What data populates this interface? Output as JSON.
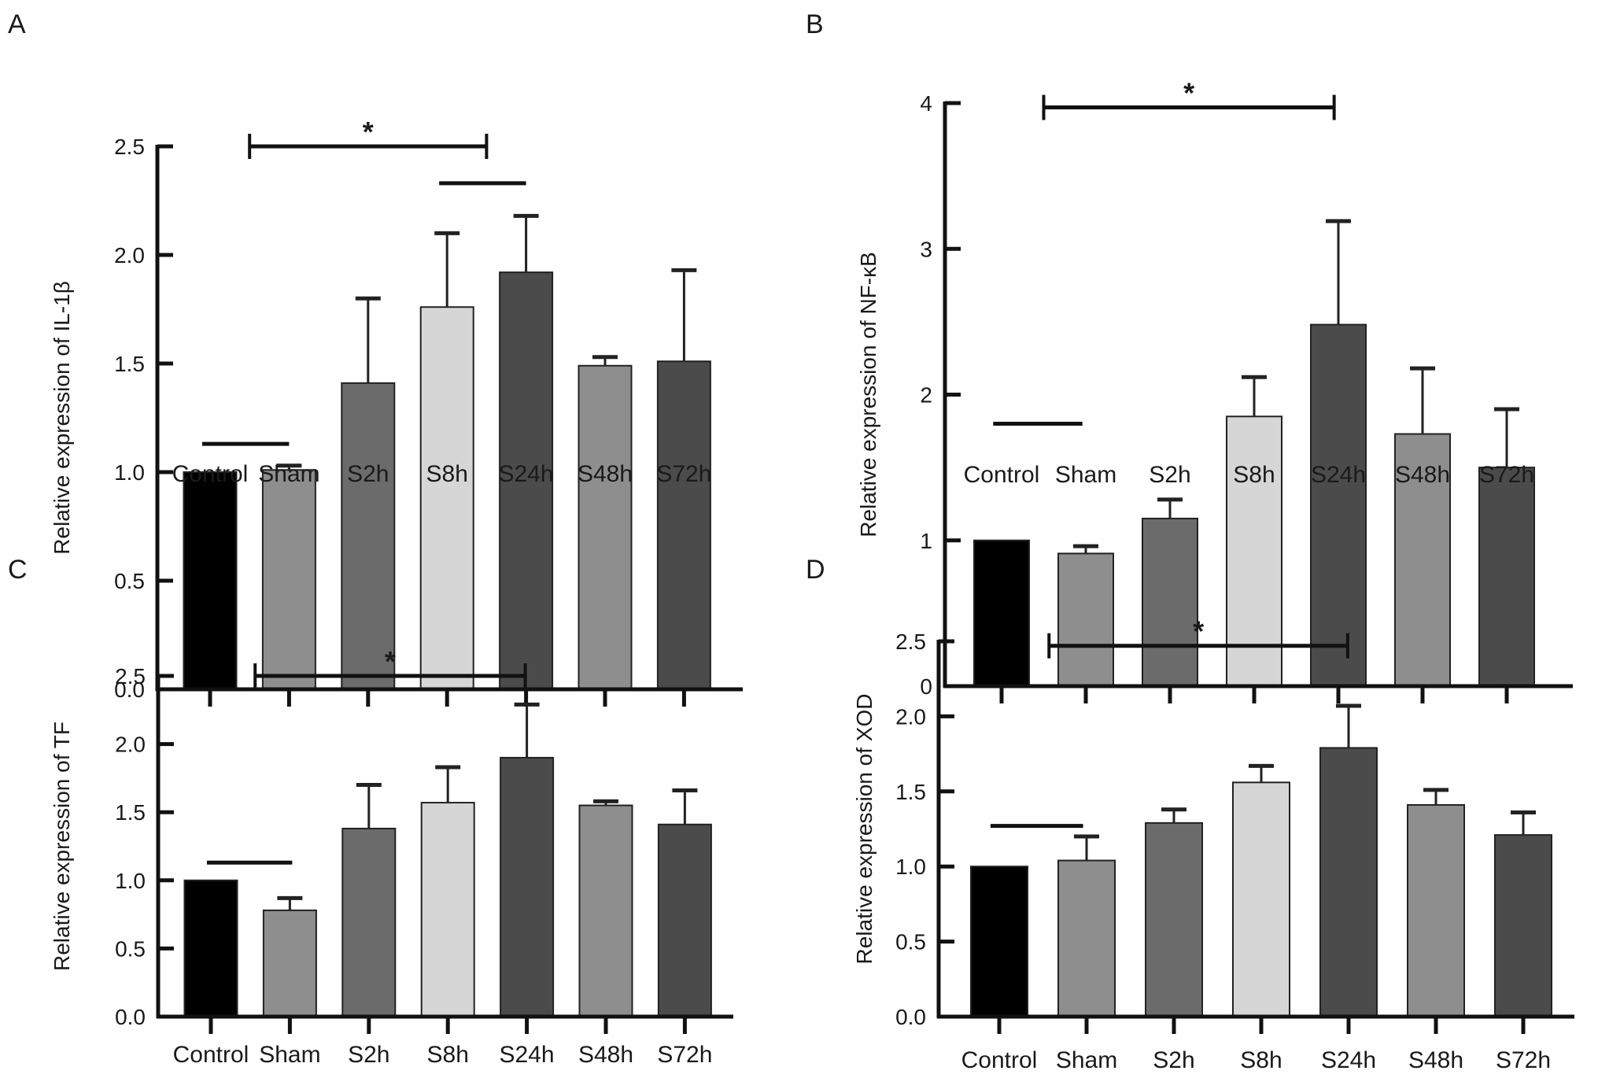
{
  "chart_data": [
    {
      "panel": "A",
      "type": "bar",
      "title": "",
      "ylabel": "Relative expression of  IL-1β",
      "xlabel": "",
      "categories": [
        "Control",
        "Sham",
        "S2h",
        "S8h",
        "S24h",
        "S48h",
        "S72h"
      ],
      "values": [
        1.0,
        1.01,
        1.41,
        1.76,
        1.92,
        1.49,
        1.51
      ],
      "error_upper": [
        1.0,
        1.03,
        1.8,
        2.1,
        2.18,
        1.53,
        1.93
      ],
      "ylim": [
        0,
        2.5
      ],
      "yticks": [
        "0.0",
        "0.5",
        "1.0",
        "1.5",
        "2.0",
        "2.5"
      ],
      "colors": [
        "#000000",
        "#8e8e8e",
        "#6b6b6b",
        "#d6d6d6",
        "#4b4b4b",
        "#8e8e8e",
        "#4b4b4b"
      ],
      "annotations": [
        {
          "kind": "bracket",
          "from": 0.5,
          "to": 3.5,
          "y": 2.5,
          "label": "*"
        },
        {
          "kind": "line",
          "from": 2.9,
          "to": 4.0,
          "y": 2.33
        },
        {
          "kind": "line",
          "from": -0.1,
          "to": 1.0,
          "y": 1.13
        }
      ]
    },
    {
      "panel": "B",
      "type": "bar",
      "title": "",
      "ylabel": "Relative expression of  NF-κB",
      "xlabel": "",
      "categories": [
        "Control",
        "Sham",
        "S2h",
        "S8h",
        "S24h",
        "S48h",
        "S72h"
      ],
      "values": [
        1.0,
        0.91,
        1.15,
        1.85,
        2.48,
        1.73,
        1.5
      ],
      "error_upper": [
        1.0,
        0.96,
        1.28,
        2.12,
        3.19,
        2.18,
        1.9
      ],
      "ylim": [
        0,
        4
      ],
      "yticks": [
        "0",
        "1",
        "2",
        "3",
        "4"
      ],
      "colors": [
        "#000000",
        "#8e8e8e",
        "#6b6b6b",
        "#d6d6d6",
        "#4b4b4b",
        "#8e8e8e",
        "#4b4b4b"
      ],
      "annotations": [
        {
          "kind": "bracket",
          "from": 0.5,
          "to": 3.95,
          "y": 3.97,
          "label": "*"
        },
        {
          "kind": "line",
          "from": -0.1,
          "to": 0.96,
          "y": 1.8
        }
      ]
    },
    {
      "panel": "C",
      "type": "bar",
      "title": "",
      "ylabel": "Relative expression of TF",
      "xlabel": "",
      "categories": [
        "Control",
        "Sham",
        "S2h",
        "S8h",
        "S24h",
        "S48h",
        "S72h"
      ],
      "values": [
        1.0,
        0.78,
        1.38,
        1.57,
        1.9,
        1.55,
        1.41
      ],
      "error_upper": [
        1.0,
        0.87,
        1.7,
        1.83,
        2.29,
        1.58,
        1.66
      ],
      "ylim": [
        0,
        2.5
      ],
      "yticks": [
        "0.0",
        "0.5",
        "1.0",
        "1.5",
        "2.0",
        "2.5"
      ],
      "colors": [
        "#000000",
        "#8e8e8e",
        "#6b6b6b",
        "#d6d6d6",
        "#4b4b4b",
        "#8e8e8e",
        "#4b4b4b"
      ],
      "annotations": [
        {
          "kind": "bracket",
          "from": 0.56,
          "to": 3.98,
          "y": 2.5,
          "label": "*"
        },
        {
          "kind": "line",
          "from": -0.05,
          "to": 1.03,
          "y": 1.13
        }
      ]
    },
    {
      "panel": "D",
      "type": "bar",
      "title": "",
      "ylabel": "Relative expression of XOD",
      "xlabel": "",
      "categories": [
        "Control",
        "Sham",
        "S2h",
        "S8h",
        "S24h",
        "S48h",
        "S72h"
      ],
      "values": [
        1.0,
        1.04,
        1.29,
        1.56,
        1.79,
        1.41,
        1.21
      ],
      "error_upper": [
        1.0,
        1.2,
        1.38,
        1.67,
        2.07,
        1.51,
        1.36
      ],
      "ylim": [
        0,
        2.5
      ],
      "yticks": [
        "0.0",
        "0.5",
        "1.0",
        "1.5",
        "2.0",
        "2.5"
      ],
      "colors": [
        "#000000",
        "#8e8e8e",
        "#6b6b6b",
        "#d6d6d6",
        "#4b4b4b",
        "#8e8e8e",
        "#4b4b4b"
      ],
      "annotations": [
        {
          "kind": "bracket",
          "from": 0.57,
          "to": 3.99,
          "y": 2.47,
          "label": "*"
        },
        {
          "kind": "line",
          "from": -0.1,
          "to": 0.96,
          "y": 1.27
        }
      ]
    }
  ]
}
